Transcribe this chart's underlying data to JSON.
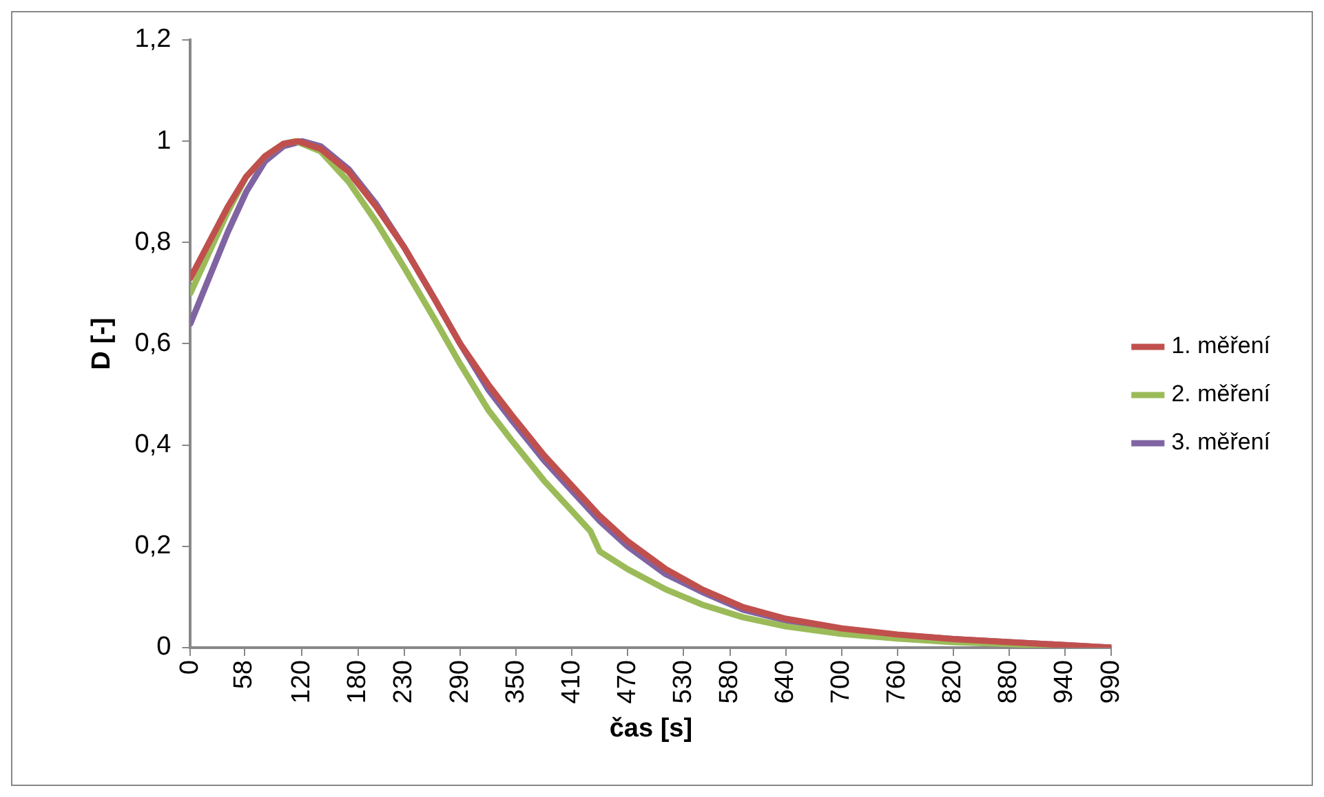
{
  "chart_data": {
    "type": "line",
    "xlabel": "čas [s]",
    "ylabel": "D [-]",
    "xlim": [
      0,
      990
    ],
    "xticks": [
      0,
      58,
      120,
      180,
      230,
      290,
      350,
      410,
      470,
      530,
      580,
      640,
      700,
      760,
      820,
      880,
      940,
      990
    ],
    "ylim": [
      0,
      1.2
    ],
    "yticks": [
      {
        "value": 0,
        "label": "0"
      },
      {
        "value": 0.2,
        "label": "0,2"
      },
      {
        "value": 0.4,
        "label": "0,4"
      },
      {
        "value": 0.6,
        "label": "0,6"
      },
      {
        "value": 0.8,
        "label": "0,8"
      },
      {
        "value": 1,
        "label": "1"
      },
      {
        "value": 1.2,
        "label": "1,2"
      }
    ],
    "grid": false,
    "legend": "right",
    "marker": "none",
    "line_style": "solid",
    "series": [
      {
        "name": "1. měření",
        "color": "#c0504d",
        "x": [
          0,
          20,
          40,
          60,
          80,
          100,
          116,
          140,
          170,
          200,
          230,
          262,
          290,
          320,
          345,
          380,
          410,
          440,
          470,
          511,
          550,
          594,
          640,
          700,
          760,
          820,
          880,
          940,
          990
        ],
        "values": [
          0.73,
          0.8,
          0.87,
          0.93,
          0.97,
          0.995,
          1,
          0.985,
          0.94,
          0.87,
          0.79,
          0.69,
          0.6,
          0.52,
          0.46,
          0.38,
          0.32,
          0.26,
          0.21,
          0.155,
          0.115,
          0.08,
          0.057,
          0.038,
          0.026,
          0.017,
          0.011,
          0.005,
          0
        ]
      },
      {
        "name": "2. měření",
        "color": "#9bbb59",
        "x": [
          0,
          20,
          40,
          60,
          80,
          100,
          113,
          140,
          170,
          200,
          230,
          262,
          290,
          320,
          345,
          380,
          410,
          430,
          440,
          470,
          511,
          550,
          594,
          640,
          700,
          760,
          820,
          880,
          940,
          990
        ],
        "values": [
          0.7,
          0.78,
          0.86,
          0.93,
          0.97,
          0.995,
          1,
          0.98,
          0.92,
          0.84,
          0.75,
          0.65,
          0.56,
          0.47,
          0.41,
          0.33,
          0.27,
          0.23,
          0.19,
          0.155,
          0.115,
          0.085,
          0.06,
          0.042,
          0.027,
          0.018,
          0.011,
          0.007,
          0.003,
          0
        ]
      },
      {
        "name": "3. měření",
        "color": "#8064a2",
        "x": [
          0,
          20,
          40,
          60,
          80,
          100,
          120,
          140,
          170,
          200,
          230,
          262,
          290,
          320,
          345,
          380,
          410,
          440,
          470,
          511,
          550,
          594,
          640,
          700,
          760,
          820,
          880,
          940,
          990
        ],
        "values": [
          0.64,
          0.73,
          0.82,
          0.9,
          0.96,
          0.99,
          1,
          0.99,
          0.945,
          0.875,
          0.79,
          0.69,
          0.6,
          0.51,
          0.45,
          0.37,
          0.31,
          0.25,
          0.2,
          0.145,
          0.11,
          0.075,
          0.054,
          0.036,
          0.025,
          0.017,
          0.011,
          0.005,
          0
        ]
      }
    ]
  }
}
